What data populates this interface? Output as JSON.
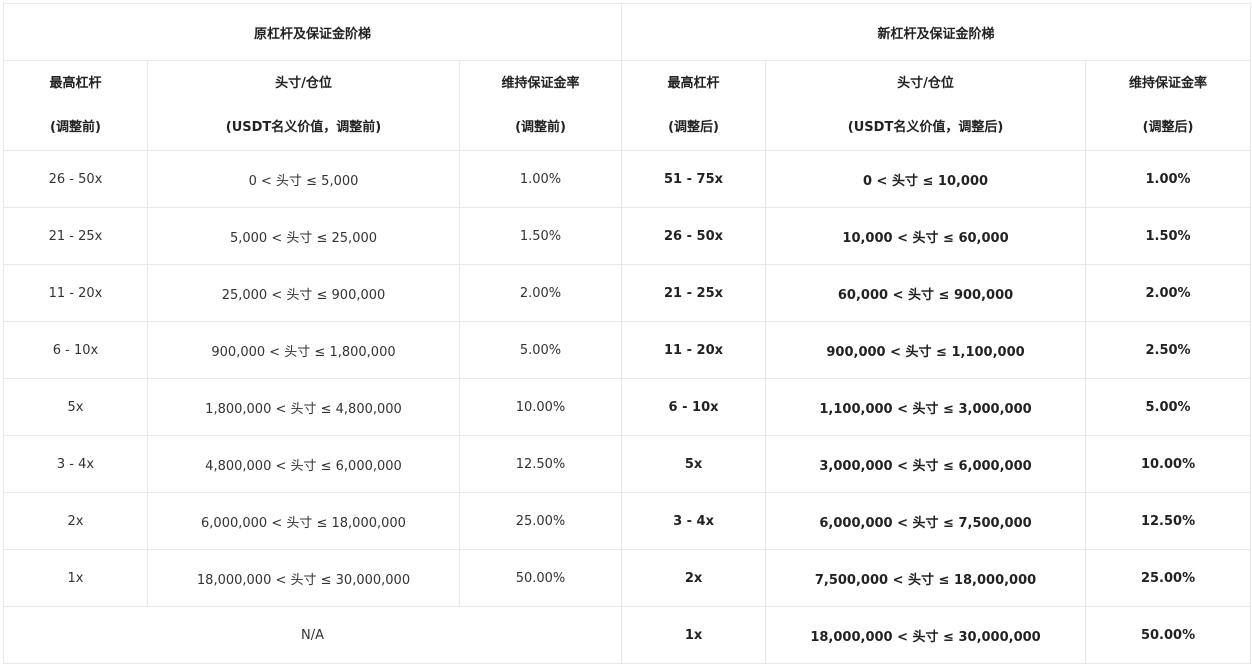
{
  "header": {
    "old_group": "原杠杆及保证金阶梯",
    "new_group": "新杠杆及保证金阶梯"
  },
  "columns": {
    "old": [
      {
        "line1": "最高杠杆",
        "line2": "(调整前)"
      },
      {
        "line1": "头寸/仓位",
        "line2": "(USDT名义价值，调整前)"
      },
      {
        "line1": "维持保证金率",
        "line2": "(调整前)"
      }
    ],
    "new": [
      {
        "line1": "最高杠杆",
        "line2": "(调整后)"
      },
      {
        "line1": "头寸/仓位",
        "line2": "(USDT名义价值，调整后)"
      },
      {
        "line1": "维持保证金率",
        "line2": "(调整后)"
      }
    ]
  },
  "old_rows": [
    [
      "26 - 50x",
      "0 < 头寸 ≤ 5,000",
      "1.00%"
    ],
    [
      "21 - 25x",
      "5,000 < 头寸 ≤ 25,000",
      "1.50%"
    ],
    [
      "11 - 20x",
      "25,000 < 头寸 ≤ 900,000",
      "2.00%"
    ],
    [
      "6 - 10x",
      "900,000 < 头寸 ≤ 1,800,000",
      "5.00%"
    ],
    [
      "5x",
      "1,800,000 < 头寸 ≤ 4,800,000",
      "10.00%"
    ],
    [
      "3 - 4x",
      "4,800,000 < 头寸 ≤ 6,000,000",
      "12.50%"
    ],
    [
      "2x",
      "6,000,000 < 头寸 ≤ 18,000,000",
      "25.00%"
    ],
    [
      "1x",
      "18,000,000 < 头寸 ≤ 30,000,000",
      "50.00%"
    ]
  ],
  "old_na": "N/A",
  "new_rows": [
    [
      "51 - 75x",
      "0 < 头寸 ≤ 10,000",
      "1.00%"
    ],
    [
      "26 - 50x",
      "10,000 < 头寸 ≤ 60,000",
      "1.50%"
    ],
    [
      "21 - 25x",
      "60,000 < 头寸 ≤ 900,000",
      "2.00%"
    ],
    [
      "11 - 20x",
      "900,000 < 头寸 ≤ 1,100,000",
      "2.50%"
    ],
    [
      "6 - 10x",
      "1,100,000 < 头寸 ≤ 3,000,000",
      "5.00%"
    ],
    [
      "5x",
      "3,000,000 < 头寸 ≤ 6,000,000",
      "10.00%"
    ],
    [
      "3 - 4x",
      "6,000,000 < 头寸 ≤ 7,500,000",
      "12.50%"
    ],
    [
      "2x",
      "7,500,000 < 头寸 ≤ 18,000,000",
      "25.00%"
    ],
    [
      "1x",
      "18,000,000 < 头寸 ≤ 30,000,000",
      "50.00%"
    ]
  ]
}
